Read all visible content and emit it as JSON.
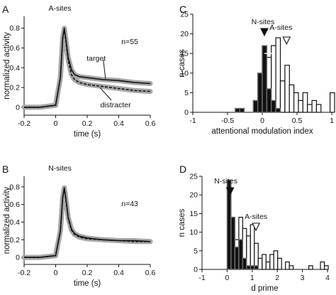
{
  "chart_data": [
    {
      "panel": "A",
      "type": "line",
      "title": "A-sites",
      "annotation": "n=55",
      "xlabel": "time (s)",
      "ylabel": "normalized activity",
      "xlim": [
        -0.2,
        0.6
      ],
      "ylim": [
        -0.08,
        0.92
      ],
      "xticks": [
        -0.2,
        0,
        0.2,
        0.4,
        0.6
      ],
      "xtick_labels": [
        "-0.2",
        "0",
        "0.2",
        "0.4",
        "0.6"
      ],
      "yticks": [
        0,
        0.2,
        0.4,
        0.6,
        0.8
      ],
      "ytick_labels": [
        "0",
        "0.2",
        "0.4",
        "0.6",
        "0.8"
      ],
      "series": [
        {
          "name": "target",
          "style": "solid",
          "x": [
            -0.2,
            -0.1,
            0.0,
            0.03,
            0.045,
            0.055,
            0.065,
            0.08,
            0.1,
            0.12,
            0.15,
            0.2,
            0.3,
            0.4,
            0.5,
            0.6
          ],
          "y": [
            0.0,
            0.0,
            0.02,
            0.3,
            0.7,
            0.8,
            0.68,
            0.5,
            0.38,
            0.33,
            0.31,
            0.3,
            0.28,
            0.27,
            0.25,
            0.24
          ]
        },
        {
          "name": "distracter",
          "style": "dashed",
          "x": [
            -0.2,
            -0.1,
            0.0,
            0.03,
            0.045,
            0.055,
            0.065,
            0.08,
            0.1,
            0.12,
            0.15,
            0.2,
            0.3,
            0.4,
            0.5,
            0.6
          ],
          "y": [
            0.0,
            0.0,
            0.02,
            0.3,
            0.7,
            0.79,
            0.66,
            0.47,
            0.33,
            0.28,
            0.25,
            0.23,
            0.21,
            0.19,
            0.17,
            0.16
          ]
        }
      ]
    },
    {
      "panel": "B",
      "type": "line",
      "title": "N-sites",
      "annotation": "n=43",
      "xlabel": "time (s)",
      "ylabel": "normalized activity",
      "xlim": [
        -0.2,
        0.6
      ],
      "ylim": [
        -0.08,
        0.92
      ],
      "xticks": [
        -0.2,
        0,
        0.2,
        0.4,
        0.6
      ],
      "xtick_labels": [
        "-0.2",
        "0",
        "0.2",
        "0.4",
        "0.6"
      ],
      "yticks": [
        0,
        0.2,
        0.4,
        0.6,
        0.8
      ],
      "ytick_labels": [
        "0",
        "0.2",
        "0.4",
        "0.6",
        "0.8"
      ],
      "series": [
        {
          "name": "",
          "style": "solid",
          "x": [
            -0.2,
            -0.1,
            0.0,
            0.03,
            0.045,
            0.055,
            0.065,
            0.08,
            0.1,
            0.12,
            0.15,
            0.2,
            0.3,
            0.4,
            0.5,
            0.6
          ],
          "y": [
            0.0,
            0.0,
            0.02,
            0.3,
            0.68,
            0.79,
            0.66,
            0.45,
            0.32,
            0.27,
            0.24,
            0.22,
            0.2,
            0.19,
            0.19,
            0.18
          ]
        },
        {
          "name": "",
          "style": "dashed",
          "x": [
            -0.2,
            -0.1,
            0.0,
            0.03,
            0.045,
            0.055,
            0.065,
            0.08,
            0.1,
            0.12,
            0.15,
            0.2,
            0.3,
            0.4,
            0.5,
            0.6
          ],
          "y": [
            0.0,
            0.0,
            0.02,
            0.3,
            0.68,
            0.78,
            0.65,
            0.44,
            0.31,
            0.26,
            0.23,
            0.21,
            0.2,
            0.19,
            0.18,
            0.18
          ]
        }
      ]
    },
    {
      "panel": "C",
      "type": "bar",
      "title": "",
      "xlabel": "attentional modulation index",
      "ylabel": "n cases",
      "xlim": [
        -1,
        1
      ],
      "ylim": [
        0,
        25
      ],
      "xticks": [
        -1,
        -0.5,
        0,
        0.5,
        1
      ],
      "xtick_labels": [
        "-1",
        "-0.5",
        "0",
        "0.5",
        "1"
      ],
      "yticks": [
        0,
        5,
        10,
        15,
        20,
        25
      ],
      "ytick_labels": [
        "0",
        "5",
        "10",
        "15",
        "20",
        "25"
      ],
      "bin_width": 0.065,
      "series": [
        {
          "name": "N-sites",
          "fill": "#111111",
          "bins": [
            -0.39,
            -0.325,
            -0.13,
            -0.065,
            0.0,
            0.065,
            0.13,
            0.195
          ],
          "values": [
            1,
            1,
            3,
            10,
            17,
            6,
            3,
            1
          ]
        },
        {
          "name": "A-sites",
          "fill": "#ffffff",
          "bins": [
            -0.065,
            0.0,
            0.065,
            0.13,
            0.195,
            0.26,
            0.325,
            0.39,
            0.455,
            0.52,
            0.585,
            0.65,
            0.715,
            0.78,
            0.975
          ],
          "values": [
            1,
            17,
            14,
            17,
            19,
            8,
            12,
            7,
            5,
            3,
            5,
            2,
            3,
            2,
            5
          ]
        }
      ],
      "markers": [
        {
          "label": "N-sites",
          "x": 0.03,
          "style": "filled"
        },
        {
          "label": "A-sites",
          "x": 0.35,
          "style": "open"
        }
      ],
      "marker_errorbar": {
        "x": 0.1,
        "xerr": 0.07,
        "y": 15
      }
    },
    {
      "panel": "D",
      "type": "bar",
      "title": "",
      "xlabel": "d prime",
      "ylabel": "n cases",
      "xlim": [
        -1,
        4
      ],
      "ylim": [
        0,
        25
      ],
      "xticks": [
        -1,
        0,
        1,
        2,
        3,
        4
      ],
      "xtick_labels": [
        "-1",
        "0",
        "1",
        "2",
        "3",
        "4"
      ],
      "yticks": [
        0,
        5,
        10,
        15,
        20,
        25
      ],
      "ytick_labels": [
        "0",
        "5",
        "10",
        "15",
        "20",
        "25"
      ],
      "bin_width": 0.155,
      "series": [
        {
          "name": "N-sites",
          "fill": "#111111",
          "bins": [
            0.0,
            0.155,
            0.31,
            0.465,
            0.62,
            0.775,
            0.93,
            1.085
          ],
          "values": [
            24,
            14,
            6,
            8,
            3,
            1,
            1,
            1
          ]
        },
        {
          "name": "A-sites",
          "fill": "#ffffff",
          "bins": [
            0.155,
            0.31,
            0.465,
            0.62,
            0.775,
            0.93,
            1.085,
            1.24,
            1.395,
            1.55,
            1.705,
            1.86,
            2.015,
            2.325,
            2.48,
            3.255,
            3.72,
            3.875
          ],
          "values": [
            4,
            8,
            14,
            11,
            9,
            12,
            7,
            3,
            4,
            2,
            4,
            5,
            3,
            2,
            1,
            1,
            2,
            1
          ]
        }
      ],
      "markers": [
        {
          "label": "N-sites",
          "x": 0.12,
          "style": "filled"
        },
        {
          "label": "A-sites",
          "x": 1.15,
          "style": "open"
        }
      ]
    }
  ],
  "panel_labels": [
    "A",
    "B",
    "C",
    "D"
  ],
  "axis_legend": {
    "target_label": "target",
    "distracter_label": "distracter"
  }
}
